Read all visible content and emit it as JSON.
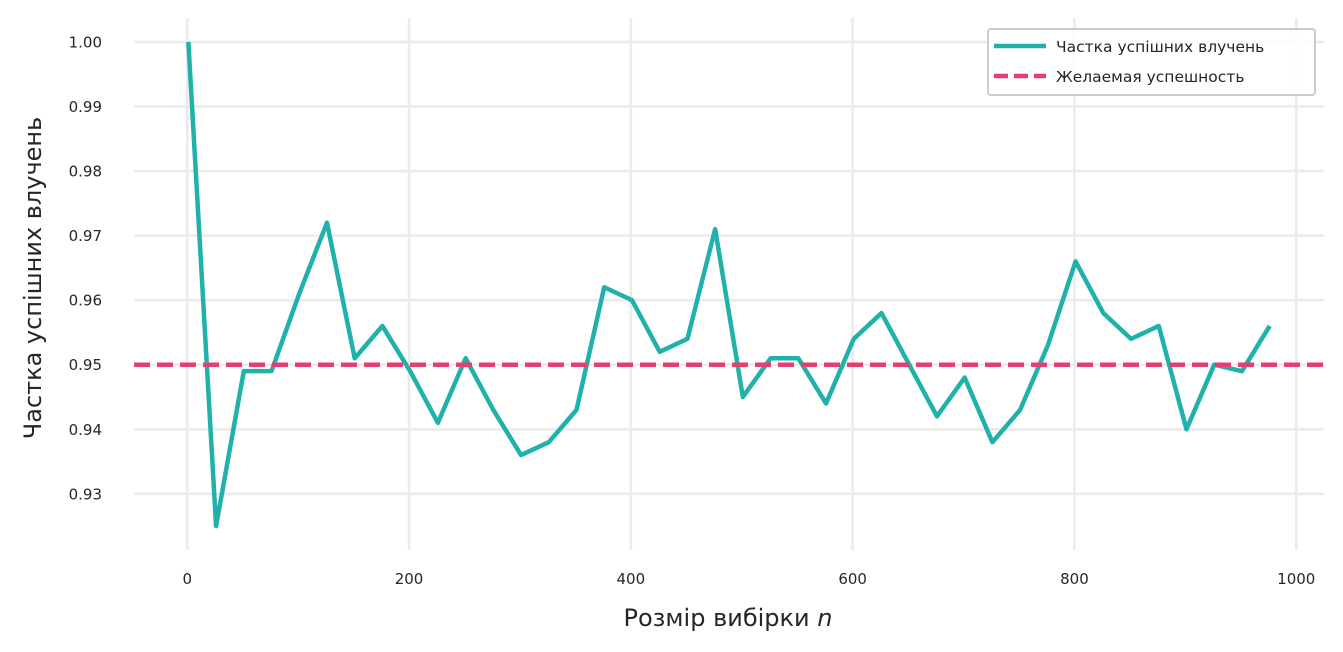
{
  "chart_data": {
    "type": "line",
    "title": "",
    "xlabel": "Розмір вибірки",
    "xlabel_var": "n",
    "ylabel": "Частка успішних влучень",
    "xlim": [
      -48,
      1025
    ],
    "ylim": [
      0.9213,
      1.0037
    ],
    "xticks": [
      0,
      200,
      400,
      600,
      800,
      1000
    ],
    "yticks": [
      0.93,
      0.94,
      0.95,
      0.96,
      0.97,
      0.98,
      0.99,
      1.0
    ],
    "ytick_labels": [
      "0.93",
      "0.94",
      "0.95",
      "0.96",
      "0.97",
      "0.98",
      "0.99",
      "1.00"
    ],
    "grid": true,
    "legend_position": "top-right",
    "series": [
      {
        "name": "Частка успішних влучень",
        "color": "#20b2aa",
        "style": "solid",
        "x": [
          1,
          26,
          51,
          76,
          101,
          126,
          151,
          176,
          201,
          226,
          251,
          276,
          301,
          326,
          351,
          376,
          401,
          426,
          451,
          476,
          501,
          526,
          551,
          576,
          601,
          626,
          651,
          676,
          701,
          726,
          751,
          776,
          801,
          826,
          851,
          876,
          901,
          926,
          951,
          976
        ],
        "y": [
          1.0,
          0.925,
          0.949,
          0.949,
          0.961,
          0.972,
          0.951,
          0.956,
          0.949,
          0.941,
          0.951,
          0.943,
          0.936,
          0.938,
          0.943,
          0.962,
          0.96,
          0.952,
          0.954,
          0.971,
          0.945,
          0.951,
          0.951,
          0.944,
          0.954,
          0.958,
          0.95,
          0.942,
          0.948,
          0.938,
          0.943,
          0.953,
          0.966,
          0.958,
          0.954,
          0.956,
          0.94,
          0.95,
          0.949,
          0.956
        ]
      },
      {
        "name": "Желаемая успешность",
        "color": "#e33f73",
        "style": "dashed",
        "y_constant": 0.95
      }
    ]
  }
}
